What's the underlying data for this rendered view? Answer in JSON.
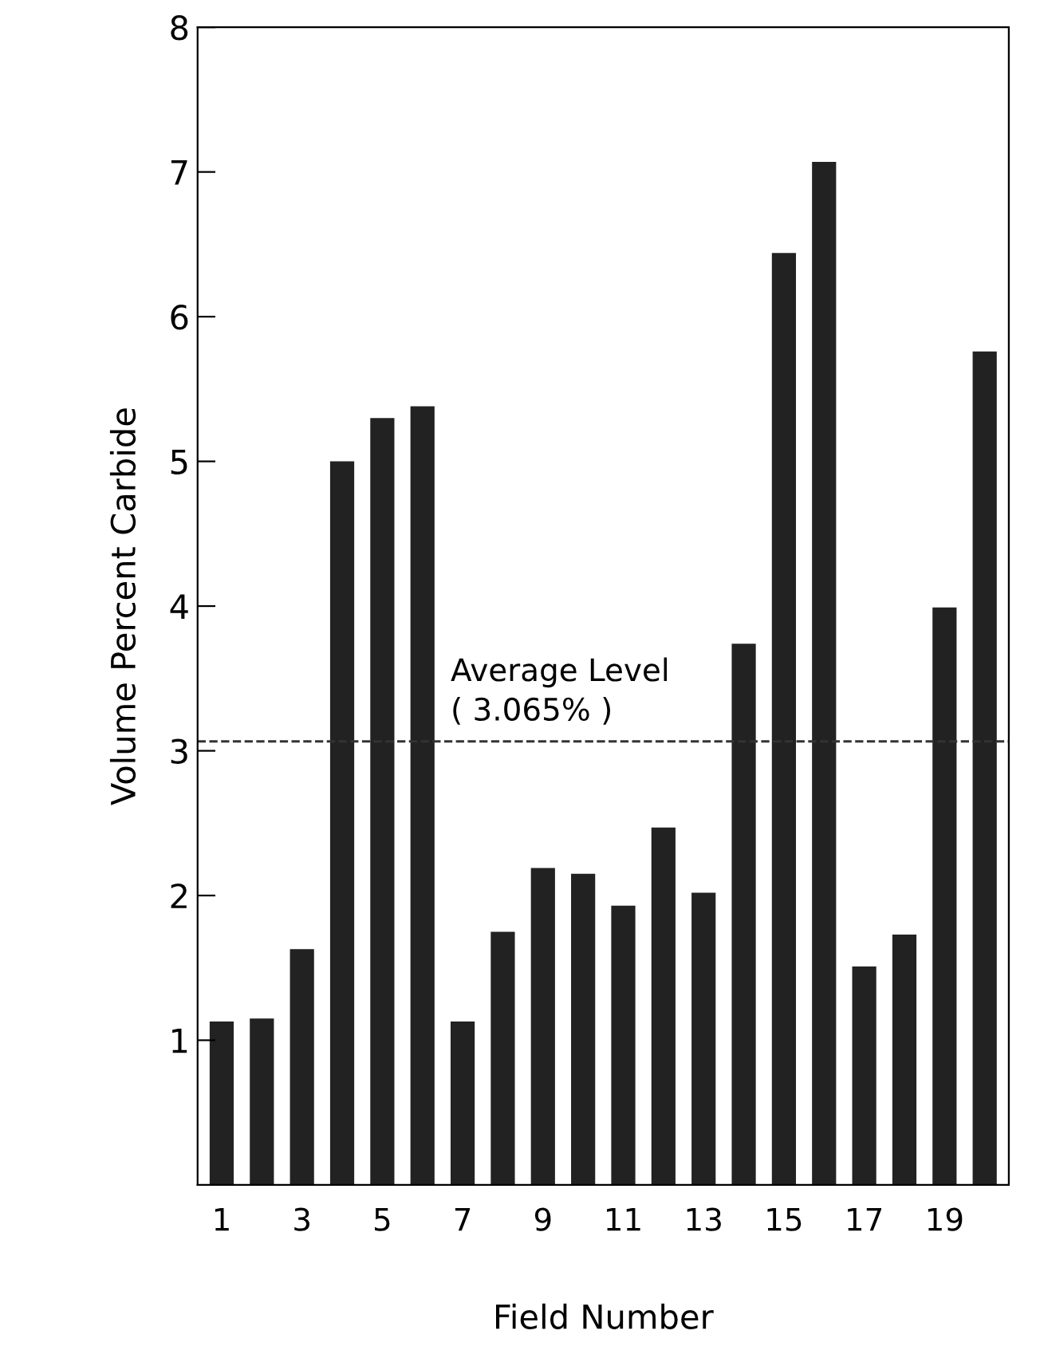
{
  "chart_data": {
    "type": "bar",
    "xlabel": "Field Number",
    "ylabel": "Volume Percent Carbide",
    "categories": [
      "1",
      null,
      "3",
      null,
      "5",
      null,
      "7",
      null,
      "9",
      null,
      "11",
      null,
      "13",
      null,
      "15",
      null,
      "17",
      null,
      "19",
      null
    ],
    "values": [
      1.13,
      1.15,
      1.63,
      5.0,
      5.3,
      5.38,
      1.13,
      1.75,
      2.19,
      2.15,
      1.93,
      2.47,
      2.02,
      3.74,
      6.44,
      7.07,
      1.51,
      1.73,
      3.99,
      5.76
    ],
    "color": "#222222",
    "ylim": [
      0,
      8
    ],
    "yticks": [
      1,
      2,
      3,
      4,
      5,
      6,
      7,
      8
    ],
    "grid": false,
    "ref_lines": [
      {
        "axis": "y",
        "value": 3.065,
        "label": "Average Level\n( 3.065% )",
        "color": "#333333",
        "line_style": "dashed"
      }
    ]
  }
}
